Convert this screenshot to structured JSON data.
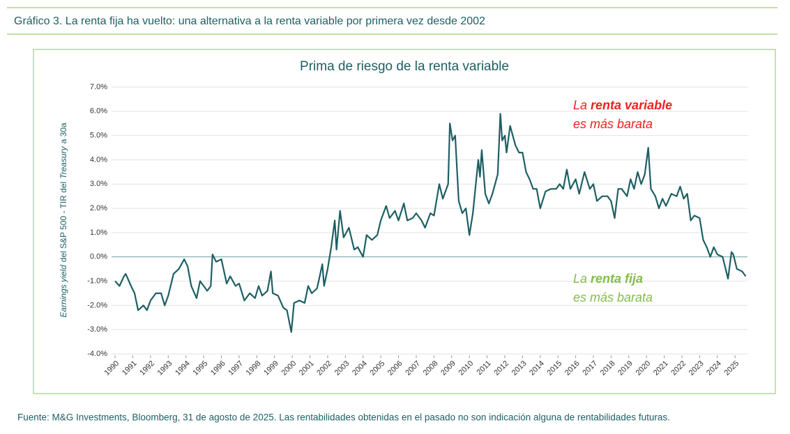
{
  "header": {
    "title": "Gráfico 3. La renta fija ha vuelto: una alternativa a la renta variable por primera vez desde 2002"
  },
  "chart_data": {
    "type": "line",
    "title": "Prima de riesgo de la renta variable",
    "y_label_parts": [
      "Earnings yield",
      "del S&P 500 - TIR del",
      "Treasury",
      "a 30a"
    ],
    "annotations": [
      {
        "parts": [
          "La",
          "renta variable",
          "es más barata"
        ],
        "color": "#e8231d"
      },
      {
        "parts": [
          "La",
          "renta fija",
          "es más barata"
        ],
        "color": "#84bd4a"
      }
    ],
    "x": [
      1990.0,
      1990.25,
      1990.5,
      1990.6,
      1990.9,
      1991.1,
      1991.3,
      1991.6,
      1991.8,
      1992.0,
      1992.3,
      1992.6,
      1992.8,
      1993.0,
      1993.3,
      1993.6,
      1993.9,
      1994.1,
      1994.3,
      1994.6,
      1994.8,
      1995.0,
      1995.2,
      1995.4,
      1995.5,
      1995.7,
      1996.0,
      1996.3,
      1996.5,
      1996.8,
      1997.0,
      1997.3,
      1997.6,
      1997.9,
      1998.1,
      1998.3,
      1998.6,
      1998.8,
      1998.9,
      1999.2,
      1999.5,
      1999.7,
      1999.95,
      2000.1,
      2000.4,
      2000.7,
      2000.9,
      2001.1,
      2001.4,
      2001.7,
      2001.8,
      2002.0,
      2002.2,
      2002.4,
      2002.5,
      2002.7,
      2002.9,
      2003.2,
      2003.5,
      2003.7,
      2004.0,
      2004.2,
      2004.5,
      2004.8,
      2005.0,
      2005.3,
      2005.5,
      2005.8,
      2006.0,
      2006.3,
      2006.5,
      2006.8,
      2007.0,
      2007.3,
      2007.5,
      2007.8,
      2008.0,
      2008.3,
      2008.5,
      2008.8,
      2008.9,
      2009.05,
      2009.2,
      2009.4,
      2009.6,
      2009.8,
      2010.0,
      2010.2,
      2010.5,
      2010.6,
      2010.7,
      2010.9,
      2011.1,
      2011.3,
      2011.6,
      2011.75,
      2011.85,
      2012.0,
      2012.1,
      2012.3,
      2012.6,
      2012.8,
      2013.0,
      2013.2,
      2013.4,
      2013.6,
      2013.8,
      2014.0,
      2014.3,
      2014.6,
      2014.9,
      2015.1,
      2015.3,
      2015.5,
      2015.7,
      2016.0,
      2016.2,
      2016.5,
      2016.8,
      2017.0,
      2017.2,
      2017.5,
      2017.8,
      2018.0,
      2018.2,
      2018.4,
      2018.6,
      2018.9,
      2019.1,
      2019.3,
      2019.5,
      2019.7,
      2019.9,
      2020.1,
      2020.25,
      2020.5,
      2020.7,
      2020.9,
      2021.1,
      2021.4,
      2021.7,
      2021.9,
      2022.1,
      2022.3,
      2022.5,
      2022.7,
      2023.0,
      2023.2,
      2023.4,
      2023.6,
      2023.8,
      2024.0,
      2024.3,
      2024.6,
      2024.8,
      2024.9,
      2025.1,
      2025.4,
      2025.6
    ],
    "values": [
      -1.0,
      -1.2,
      -0.8,
      -0.7,
      -1.2,
      -1.5,
      -2.2,
      -2.0,
      -2.2,
      -1.8,
      -1.5,
      -1.5,
      -2.0,
      -1.6,
      -0.7,
      -0.5,
      -0.1,
      -0.4,
      -1.2,
      -1.7,
      -1.0,
      -1.2,
      -1.4,
      -1.2,
      0.1,
      -0.2,
      -0.1,
      -1.1,
      -0.8,
      -1.2,
      -1.1,
      -1.8,
      -1.5,
      -1.7,
      -1.2,
      -1.6,
      -1.4,
      -0.6,
      -1.5,
      -1.6,
      -2.1,
      -2.2,
      -3.1,
      -1.9,
      -1.8,
      -1.9,
      -1.2,
      -1.5,
      -1.3,
      -0.3,
      -1.2,
      -0.5,
      0.4,
      1.5,
      0.3,
      1.9,
      0.8,
      1.2,
      0.3,
      0.4,
      0.0,
      0.9,
      0.7,
      0.9,
      1.5,
      2.1,
      1.6,
      1.9,
      1.5,
      2.2,
      1.5,
      1.6,
      1.8,
      1.5,
      1.2,
      1.8,
      1.7,
      3.0,
      2.4,
      3.0,
      5.5,
      4.8,
      5.0,
      2.3,
      1.8,
      2.0,
      0.9,
      1.8,
      4.0,
      3.3,
      4.4,
      2.6,
      2.2,
      2.6,
      3.4,
      5.9,
      4.8,
      5.0,
      4.3,
      5.4,
      4.6,
      4.3,
      4.3,
      3.5,
      3.2,
      2.8,
      2.8,
      2.0,
      2.7,
      2.8,
      2.8,
      3.0,
      2.8,
      3.6,
      2.8,
      3.2,
      2.6,
      3.5,
      2.8,
      3.0,
      2.3,
      2.5,
      2.5,
      2.3,
      1.6,
      2.8,
      2.8,
      2.5,
      3.2,
      2.8,
      3.5,
      3.0,
      3.4,
      4.5,
      2.8,
      2.5,
      2.0,
      2.4,
      2.1,
      2.6,
      2.5,
      2.9,
      2.4,
      2.6,
      1.5,
      1.7,
      1.6,
      0.7,
      0.4,
      0.0,
      0.4,
      0.1,
      0.0,
      -0.9,
      0.2,
      0.1,
      -0.5,
      -0.6,
      -0.8
    ],
    "color": "#1d5f63",
    "xlim": [
      1989.8,
      2025.7
    ],
    "xticks": [
      1990,
      1991,
      1992,
      1993,
      1994,
      1995,
      1996,
      1997,
      1998,
      1999,
      2000,
      2001,
      2002,
      2003,
      2004,
      2005,
      2006,
      2007,
      2008,
      2009,
      2010,
      2011,
      2012,
      2013,
      2014,
      2015,
      2016,
      2017,
      2018,
      2019,
      2020,
      2021,
      2022,
      2023,
      2024,
      2025
    ],
    "ylim": [
      -4,
      7
    ],
    "yticks": [
      {
        "value": -4,
        "label": "-4.0%"
      },
      {
        "value": -3,
        "label": "-3.0%"
      },
      {
        "value": -2,
        "label": "-2.0%"
      },
      {
        "value": -1,
        "label": "-1.0%"
      },
      {
        "value": 0,
        "label": "0.0%"
      },
      {
        "value": 1,
        "label": "1.0%"
      },
      {
        "value": 2,
        "label": "2.0%"
      },
      {
        "value": 3,
        "label": "3.0%"
      },
      {
        "value": 4,
        "label": "4.0%"
      },
      {
        "value": 5,
        "label": "5.0%"
      },
      {
        "value": 6,
        "label": "6.0%"
      },
      {
        "value": 7,
        "label": "7.0%"
      }
    ],
    "grid": true
  },
  "footer": {
    "source": "Fuente: M&G Investments, Bloomberg, 31 de agosto de 2025. Las rentabilidades obtenidas en el pasado no son indicación alguna de rentabilidades futuras."
  }
}
